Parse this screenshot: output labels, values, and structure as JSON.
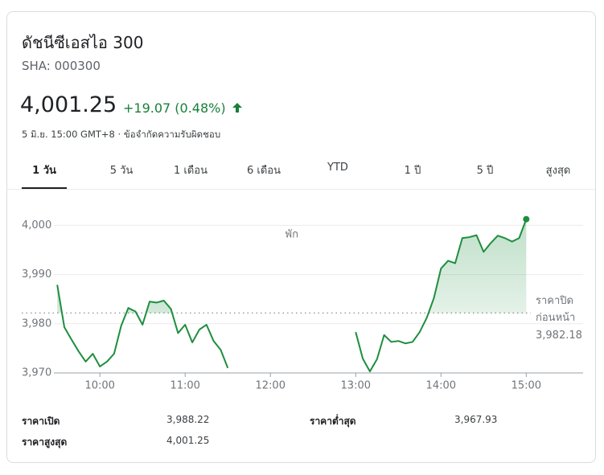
{
  "header": {
    "title": "ดัชนีซีเอสไอ 300",
    "symbol": "SHA: 000300",
    "price": "4,001.25",
    "change": "+19.07 (0.48%)",
    "timestamp": "5 มิ.ย. 15:00 GMT+8",
    "disclaimer": "· ข้อจำกัดความรับผิดชอบ"
  },
  "tabs": [
    "1 วัน",
    "5 วัน",
    "1 เดือน",
    "6 เดือน",
    "YTD",
    "1 ปี",
    "5 ปี",
    "สูงสุด"
  ],
  "chart_data": {
    "type": "line",
    "color": "#1e8e3e",
    "x": [
      570,
      575,
      580,
      585,
      590,
      595,
      600,
      605,
      610,
      615,
      620,
      625,
      630,
      635,
      640,
      645,
      650,
      655,
      660,
      665,
      670,
      675,
      680,
      685,
      690,
      735,
      780,
      785,
      790,
      795,
      800,
      805,
      810,
      815,
      820,
      825,
      830,
      835,
      840,
      845,
      850,
      855,
      860,
      865,
      870,
      875,
      880,
      885,
      890,
      895,
      900
    ],
    "values": [
      3987.9,
      3979.3,
      3976.8,
      3974.4,
      3972.3,
      3973.9,
      3971.3,
      3972.3,
      3973.9,
      3979.6,
      3983.2,
      3982.5,
      3979.8,
      3984.5,
      3984.3,
      3984.7,
      3983.0,
      3978.1,
      3979.8,
      3976.2,
      3978.8,
      3979.8,
      3976.5,
      3974.7,
      3971.0,
      null,
      3978.3,
      3972.9,
      3970.3,
      3972.8,
      3977.7,
      3976.3,
      3976.5,
      3976.0,
      3976.3,
      3978.3,
      3981.2,
      3985.2,
      3991.2,
      3992.8,
      3992.3,
      3997.4,
      3997.6,
      3998.0,
      3994.6,
      3996.4,
      3997.9,
      3997.4,
      3996.7,
      3997.4,
      4001.25
    ],
    "xlim": [
      545,
      940
    ],
    "ylim": [
      3970,
      4003
    ],
    "xticks": [
      {
        "value": 600,
        "label": "10:00"
      },
      {
        "value": 660,
        "label": "11:00"
      },
      {
        "value": 720,
        "label": "12:00"
      },
      {
        "value": 780,
        "label": "13:00"
      },
      {
        "value": 840,
        "label": "14:00"
      },
      {
        "value": 900,
        "label": "15:00"
      }
    ],
    "yticks": [
      {
        "value": 3970,
        "label": "3,970"
      },
      {
        "value": 3980,
        "label": "3,980"
      },
      {
        "value": 3990,
        "label": "3,990"
      },
      {
        "value": 4000,
        "label": "4,000"
      }
    ],
    "grid": true,
    "annotation": "พัก",
    "previous_close_title": [
      "ราคาปิด",
      "ก่อนหน้า"
    ],
    "previous_close": {
      "value": 3982.18,
      "label": "3,982.18"
    }
  },
  "stats": [
    {
      "label": "ราคาเปิด",
      "value": "3,988.22"
    },
    {
      "label": "ราคาสูงสุด",
      "value": "4,001.25"
    },
    {
      "label": "ราคาต่ำสุด",
      "value": "3,967.93"
    }
  ]
}
